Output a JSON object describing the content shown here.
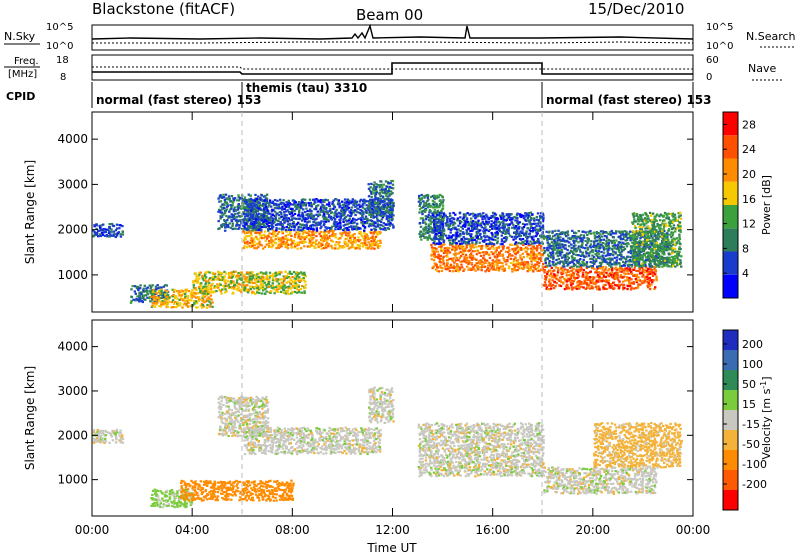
{
  "header": {
    "station": "Blackstone (fitACF)",
    "beam": "Beam 00",
    "date": "15/Dec/2010"
  },
  "noise_panel": {
    "left_label": "N.Sky",
    "right_label": "N.Search",
    "left_ticks": [
      "10^5",
      "10^0"
    ],
    "right_ticks": [
      "10^5",
      "10^0"
    ]
  },
  "freq_panel": {
    "left_label_line1": "Freq.",
    "left_label_line2": "[MHz]",
    "left_ticks": [
      "18",
      "8"
    ],
    "right_label": "Nave",
    "right_ticks": [
      "60",
      "0"
    ]
  },
  "cpid": {
    "label": "CPID",
    "segments": [
      {
        "text": "normal (fast stereo) 153",
        "start_hour": 0,
        "end_hour": 6
      },
      {
        "text": "themis (tau) 3310",
        "start_hour": 6,
        "end_hour": 18
      },
      {
        "text": "normal (fast stereo) 153",
        "start_hour": 18,
        "end_hour": 24
      }
    ]
  },
  "colors": {
    "power_scale": [
      "#0000ff",
      "#1a3ccd",
      "#2e7d5a",
      "#3ca03c",
      "#f5c800",
      "#ff8c00",
      "#ff5000",
      "#ff0000"
    ],
    "velocity_scale": [
      "#1f2dbf",
      "#3a6cb3",
      "#2e8b57",
      "#7acc3c",
      "#c8c8c0",
      "#f3b23a",
      "#ff8c00",
      "#ff5a00",
      "#ff0000"
    ],
    "ground_scatter": "#c8c8c0"
  },
  "chart_data": [
    {
      "type": "heatmap",
      "title": "",
      "xlabel": "Time UT",
      "ylabel": "Slant Range [km]",
      "xlim": [
        0,
        24
      ],
      "ylim": [
        180,
        4600
      ],
      "x_ticks": [
        "00:00",
        "04:00",
        "08:00",
        "12:00",
        "16:00",
        "20:00",
        "00:00"
      ],
      "y_ticks": [
        "1000",
        "2000",
        "3000",
        "4000"
      ],
      "colorbar": {
        "label": "Power [dB]",
        "ticks": [
          "28",
          "24",
          "20",
          "16",
          "12",
          "8",
          "4"
        ],
        "range": [
          0,
          30
        ]
      },
      "scatter_bands": [
        {
          "time_hours": [
            0,
            1.2
          ],
          "range_km": [
            1850,
            2150
          ],
          "power_db": 6
        },
        {
          "time_hours": [
            1.5,
            3.0
          ],
          "range_km": [
            400,
            800
          ],
          "power_db": 8
        },
        {
          "time_hours": [
            2.3,
            4.8
          ],
          "range_km": [
            300,
            700
          ],
          "power_db": 18
        },
        {
          "time_hours": [
            4.0,
            8.5
          ],
          "range_km": [
            600,
            1100
          ],
          "power_db": 16
        },
        {
          "time_hours": [
            5.0,
            7.0
          ],
          "range_km": [
            2000,
            2800
          ],
          "power_db": 8
        },
        {
          "time_hours": [
            6.0,
            11.5
          ],
          "range_km": [
            1600,
            2000
          ],
          "power_db": 20
        },
        {
          "time_hours": [
            6.0,
            12.0
          ],
          "range_km": [
            2000,
            2700
          ],
          "power_db": 6
        },
        {
          "time_hours": [
            11.0,
            12.0
          ],
          "range_km": [
            2300,
            3100
          ],
          "power_db": 8
        },
        {
          "time_hours": [
            13.0,
            14.0
          ],
          "range_km": [
            1800,
            2800
          ],
          "power_db": 10
        },
        {
          "time_hours": [
            13.5,
            18.0
          ],
          "range_km": [
            1100,
            1700
          ],
          "power_db": 22
        },
        {
          "time_hours": [
            13.5,
            18.0
          ],
          "range_km": [
            1700,
            2400
          ],
          "power_db": 6
        },
        {
          "time_hours": [
            18.0,
            22.5
          ],
          "range_km": [
            700,
            1200
          ],
          "power_db": 24
        },
        {
          "time_hours": [
            18.0,
            23.0
          ],
          "range_km": [
            1200,
            2000
          ],
          "power_db": 8
        },
        {
          "time_hours": [
            21.5,
            23.5
          ],
          "range_km": [
            1200,
            2400
          ],
          "power_db": 12
        }
      ]
    },
    {
      "type": "heatmap",
      "title": "",
      "xlabel": "Time UT",
      "ylabel": "Slant Range [km]",
      "xlim": [
        0,
        24
      ],
      "ylim": [
        180,
        4600
      ],
      "x_ticks": [
        "00:00",
        "04:00",
        "08:00",
        "12:00",
        "16:00",
        "20:00",
        "00:00"
      ],
      "y_ticks": [
        "1000",
        "2000",
        "3000",
        "4000"
      ],
      "colorbar": {
        "label": "Velocity [m s^-1]",
        "ticks": [
          "200",
          "100",
          "50",
          "15",
          "-15",
          "-50",
          "-100",
          "-200"
        ],
        "range": [
          -250,
          250
        ]
      },
      "scatter_bands": [
        {
          "time_hours": [
            0,
            1.2
          ],
          "range_km": [
            1850,
            2150
          ],
          "velocity": 0
        },
        {
          "time_hours": [
            2.3,
            4.0
          ],
          "range_km": [
            400,
            800
          ],
          "velocity": 30
        },
        {
          "time_hours": [
            3.5,
            8.0
          ],
          "range_km": [
            550,
            1000
          ],
          "velocity": -70
        },
        {
          "time_hours": [
            5.0,
            7.0
          ],
          "range_km": [
            2000,
            2900
          ],
          "velocity": 0
        },
        {
          "time_hours": [
            6.0,
            11.5
          ],
          "range_km": [
            1600,
            2200
          ],
          "velocity": 0
        },
        {
          "time_hours": [
            11.0,
            12.0
          ],
          "range_km": [
            2300,
            3100
          ],
          "velocity": 0
        },
        {
          "time_hours": [
            13.0,
            18.0
          ],
          "range_km": [
            1100,
            2300
          ],
          "velocity": 0
        },
        {
          "time_hours": [
            18.0,
            22.5
          ],
          "range_km": [
            700,
            1300
          ],
          "velocity": 0
        },
        {
          "time_hours": [
            20.0,
            23.5
          ],
          "range_km": [
            1300,
            2300
          ],
          "velocity": -30
        }
      ]
    }
  ]
}
